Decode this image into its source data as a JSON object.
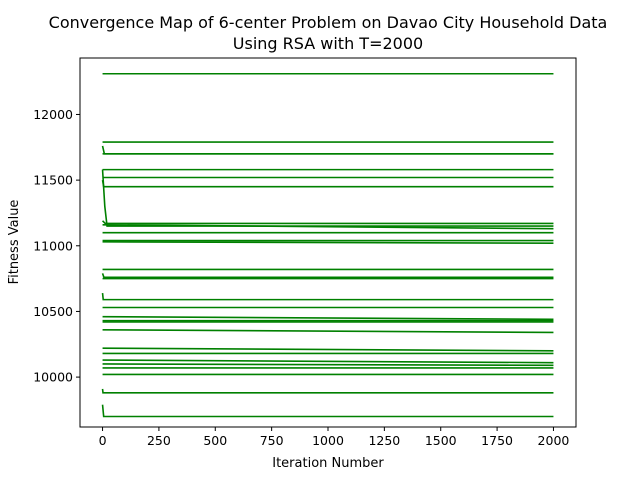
{
  "chart_data": {
    "type": "line",
    "title": "Convergence Map of 6-center Problem on Davao City Household Data",
    "subtitle": "Using RSA with T=2000",
    "xlabel": "Iteration Number",
    "ylabel": "Fitness Value",
    "xlim": [
      -100,
      2100
    ],
    "ylim": [
      9620,
      12430
    ],
    "xticks": [
      0,
      250,
      500,
      750,
      1000,
      1250,
      1500,
      1750,
      2000
    ],
    "yticks": [
      10000,
      10500,
      11000,
      11500,
      12000
    ],
    "grid": false,
    "legend": "none",
    "line_color": "#008000",
    "series": [
      {
        "points": [
          [
            0,
            12310
          ],
          [
            2000,
            12310
          ]
        ]
      },
      {
        "points": [
          [
            0,
            11790
          ],
          [
            2000,
            11790
          ]
        ]
      },
      {
        "points": [
          [
            0,
            11760
          ],
          [
            8,
            11700
          ],
          [
            2000,
            11700
          ]
        ]
      },
      {
        "points": [
          [
            0,
            11700
          ],
          [
            2000,
            11700
          ]
        ]
      },
      {
        "points": [
          [
            0,
            11580
          ],
          [
            2000,
            11580
          ]
        ]
      },
      {
        "points": [
          [
            0,
            11520
          ],
          [
            2000,
            11520
          ]
        ]
      },
      {
        "points": [
          [
            0,
            11500
          ],
          [
            5,
            11450
          ],
          [
            2000,
            11450
          ]
        ]
      },
      {
        "points": [
          [
            0,
            11580
          ],
          [
            10,
            11300
          ],
          [
            20,
            11150
          ],
          [
            2000,
            11150
          ]
        ]
      },
      {
        "points": [
          [
            0,
            11190
          ],
          [
            12,
            11170
          ],
          [
            2000,
            11170
          ]
        ]
      },
      {
        "points": [
          [
            0,
            11160
          ],
          [
            2000,
            11130
          ]
        ]
      },
      {
        "points": [
          [
            0,
            11100
          ],
          [
            2000,
            11100
          ]
        ]
      },
      {
        "points": [
          [
            0,
            11040
          ],
          [
            2000,
            11040
          ]
        ]
      },
      {
        "points": [
          [
            0,
            11030
          ],
          [
            2000,
            11020
          ]
        ]
      },
      {
        "points": [
          [
            0,
            10820
          ],
          [
            2000,
            10820
          ]
        ]
      },
      {
        "points": [
          [
            0,
            10790
          ],
          [
            6,
            10760
          ],
          [
            2000,
            10760
          ]
        ]
      },
      {
        "points": [
          [
            0,
            10750
          ],
          [
            2000,
            10750
          ]
        ]
      },
      {
        "points": [
          [
            0,
            10640
          ],
          [
            3,
            10590
          ],
          [
            2000,
            10590
          ]
        ]
      },
      {
        "points": [
          [
            0,
            10530
          ],
          [
            2000,
            10530
          ]
        ]
      },
      {
        "points": [
          [
            0,
            10460
          ],
          [
            2000,
            10440
          ]
        ]
      },
      {
        "points": [
          [
            0,
            10430
          ],
          [
            2000,
            10430
          ]
        ]
      },
      {
        "points": [
          [
            0,
            10420
          ],
          [
            2000,
            10420
          ]
        ]
      },
      {
        "points": [
          [
            0,
            10360
          ],
          [
            2000,
            10340
          ]
        ]
      },
      {
        "points": [
          [
            0,
            10220
          ],
          [
            2000,
            10200
          ]
        ]
      },
      {
        "points": [
          [
            0,
            10180
          ],
          [
            2000,
            10180
          ]
        ]
      },
      {
        "points": [
          [
            0,
            10130
          ],
          [
            2000,
            10110
          ]
        ]
      },
      {
        "points": [
          [
            0,
            10100
          ],
          [
            2000,
            10090
          ]
        ]
      },
      {
        "points": [
          [
            0,
            10070
          ],
          [
            2000,
            10070
          ]
        ]
      },
      {
        "points": [
          [
            0,
            10020
          ],
          [
            2000,
            10020
          ]
        ]
      },
      {
        "points": [
          [
            0,
            9910
          ],
          [
            2,
            9880
          ],
          [
            2000,
            9880
          ]
        ]
      },
      {
        "points": [
          [
            0,
            9790
          ],
          [
            5,
            9700
          ],
          [
            2000,
            9700
          ]
        ]
      }
    ]
  }
}
